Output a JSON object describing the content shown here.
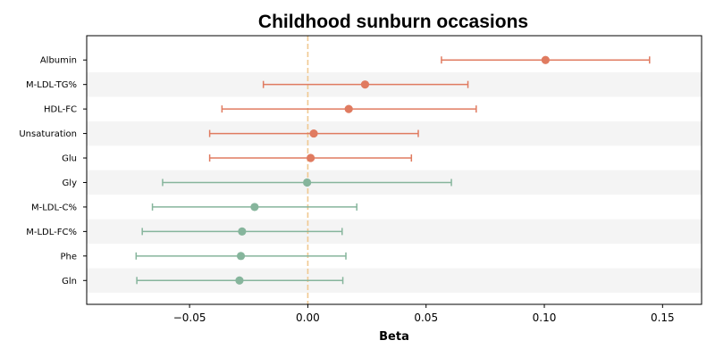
{
  "chart_data": {
    "type": "forest",
    "title": "Childhood sunburn occasions",
    "xlabel": "Beta",
    "xlim": [
      -0.0935,
      0.1665
    ],
    "xticks": [
      -0.05,
      0.0,
      0.05,
      0.1,
      0.15
    ],
    "xtick_labels": [
      "−0.05",
      "0.00",
      "0.05",
      "0.10",
      "0.15"
    ],
    "reference_line_x": 0.0,
    "alternating_row_shading": true,
    "categories": [
      "Albumin",
      "M-LDL-TG%",
      "HDL-FC",
      "Unsaturation",
      "Glu",
      "Gly",
      "M-LDL-C%",
      "M-LDL-FC%",
      "Phe",
      "Gln"
    ],
    "estimates": [
      {
        "label": "Albumin",
        "beta": 0.1005,
        "ci_low": 0.0565,
        "ci_high": 0.1445
      },
      {
        "label": "M-LDL-TG%",
        "beta": 0.0242,
        "ci_low": -0.0188,
        "ci_high": 0.0677
      },
      {
        "label": "HDL-FC",
        "beta": 0.0173,
        "ci_low": -0.0363,
        "ci_high": 0.0712
      },
      {
        "label": "Unsaturation",
        "beta": 0.0025,
        "ci_low": -0.0415,
        "ci_high": 0.0467
      },
      {
        "label": "Glu",
        "beta": 0.0012,
        "ci_low": -0.0415,
        "ci_high": 0.0438
      },
      {
        "label": "Gly",
        "beta": -0.0003,
        "ci_low": -0.0614,
        "ci_high": 0.0607
      },
      {
        "label": "M-LDL-C%",
        "beta": -0.0225,
        "ci_low": -0.0657,
        "ci_high": 0.0207
      },
      {
        "label": "M-LDL-FC%",
        "beta": -0.0278,
        "ci_low": -0.07,
        "ci_high": 0.0145
      },
      {
        "label": "Phe",
        "beta": -0.0283,
        "ci_low": -0.0726,
        "ci_high": 0.0161
      },
      {
        "label": "Gln",
        "beta": -0.0289,
        "ci_low": -0.0723,
        "ci_high": 0.0148
      }
    ],
    "colors": {
      "positive": "#e07b60",
      "negative": "#86b59c",
      "reference_line": "#f0c890",
      "row_shading": "#f4f4f4"
    }
  }
}
